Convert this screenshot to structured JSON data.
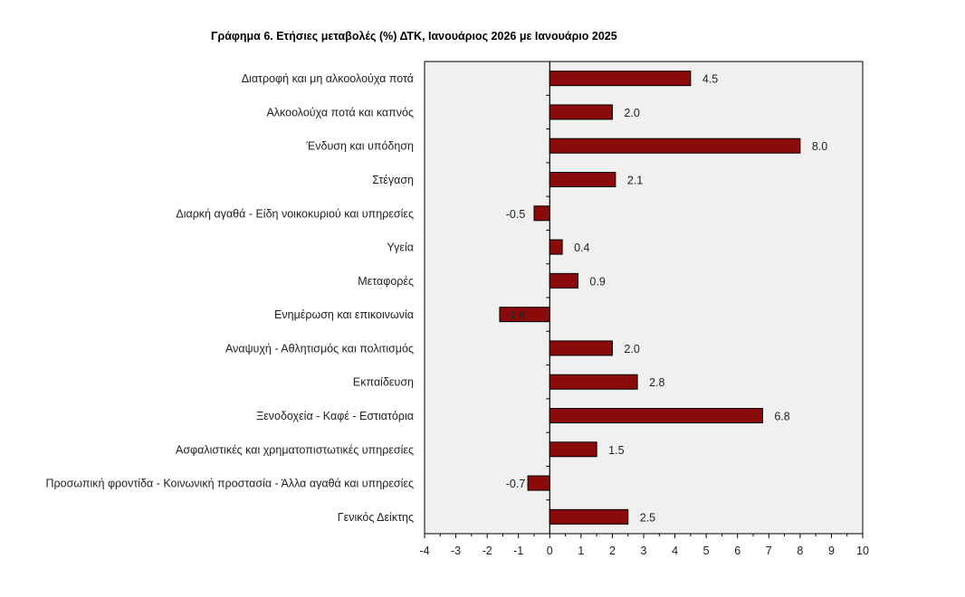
{
  "chart_data": {
    "type": "bar",
    "orientation": "horizontal",
    "title": "Γράφημα 6. Ετήσιες μεταβολές (%) ΔΤΚ, Ιανουάριος 2026 με Ιανουάριο 2025",
    "xlabel": "",
    "ylabel": "",
    "xlim": [
      -4,
      10
    ],
    "xticks": [
      -4,
      -3,
      -2,
      -1,
      0,
      1,
      2,
      3,
      4,
      5,
      6,
      7,
      8,
      9,
      10
    ],
    "grid": false,
    "legend": "none",
    "bar_color": "#8B0A0A",
    "plot_background": "#F0F0F0",
    "categories": [
      "Διατροφή και μη αλκοολούχα ποτά",
      "Αλκοολούχα ποτά και καπνός",
      "Ένδυση και υπόδηση",
      "Στέγαση",
      "Διαρκή αγαθά - Είδη νοικοκυριού και υπηρεσίες",
      "Υγεία",
      "Μεταφορές",
      "Ενημέρωση και επικοινωνία",
      "Αναψυχή - Αθλητισμός και πολιτισμός",
      "Εκπαίδευση",
      "Ξενοδοχεία - Καφέ - Εστιατόρια",
      "Ασφαλιστικές και χρηματοπιστωτικές υπηρεσίες",
      "Προσωπική φροντίδα - Κοινωνική προστασία - Άλλα αγαθά και υπηρεσίες",
      "Γενικός Δείκτης"
    ],
    "values": [
      4.5,
      2.0,
      8.0,
      2.1,
      -0.5,
      0.4,
      0.9,
      -1.6,
      2.0,
      2.8,
      6.8,
      1.5,
      -0.7,
      2.5
    ],
    "data_labels": [
      "4.5",
      "2.0",
      "8.0",
      "2.1",
      "-0.5",
      "0.4",
      "0.9",
      "-1.6",
      "2.0",
      "2.8",
      "6.8",
      "1.5",
      "-0.7",
      "2.5"
    ]
  }
}
